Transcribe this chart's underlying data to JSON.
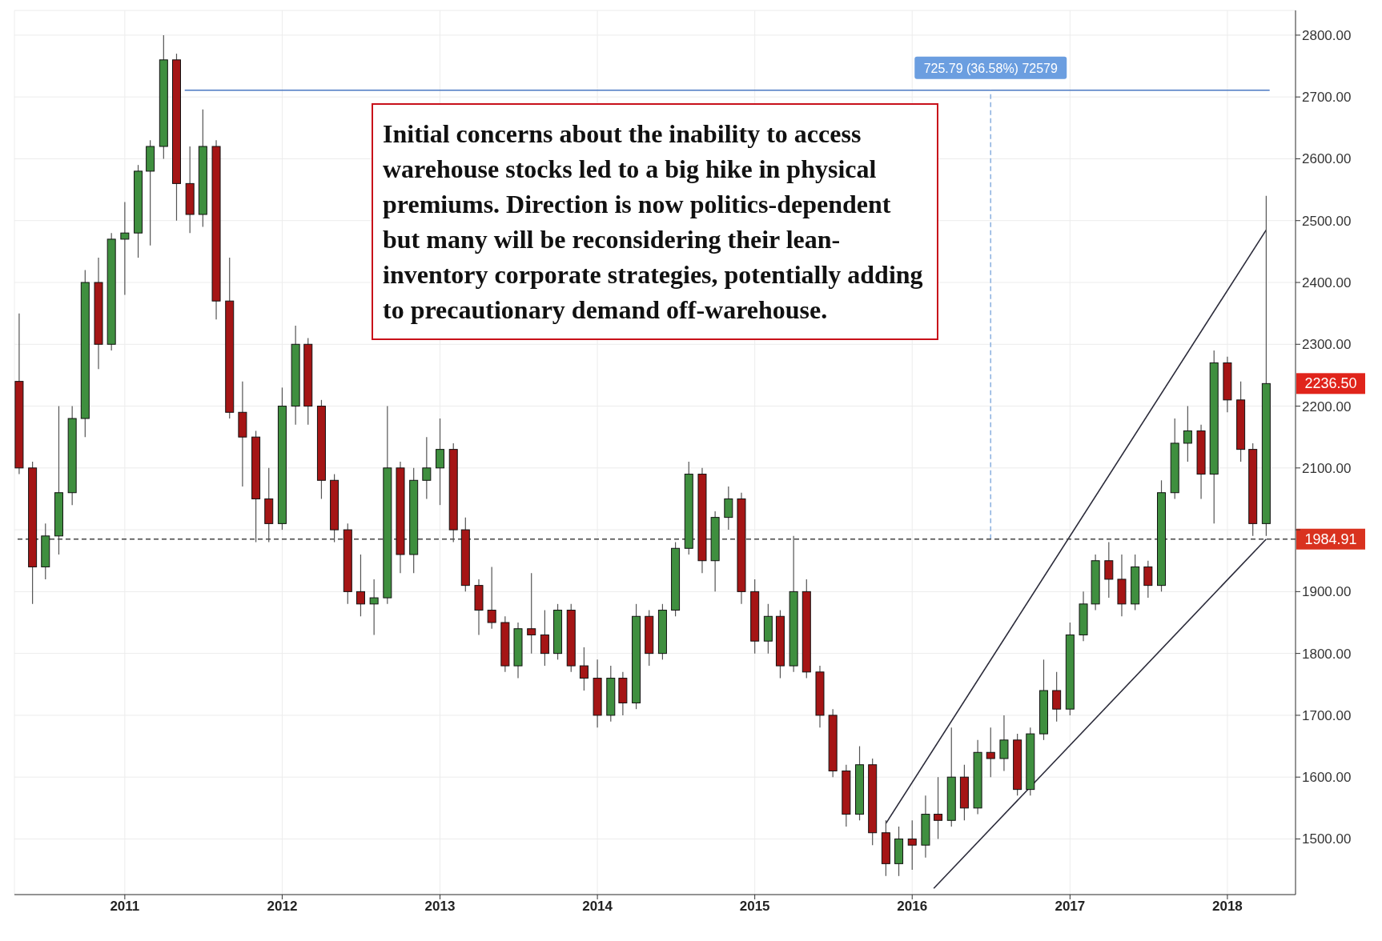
{
  "chart_data": {
    "type": "candlestick",
    "grid": true,
    "annotations": [
      "Initial concerns about the inability to access warehouse stocks led to a big hike in physical premiums. Direction is now politics-dependent but many will be reconsidering their lean-inventory corporate strategies, potentially adding to precautionary demand off-warehouse.",
      {
        "text": "725.79 (36.58%) 72579",
        "x": "2016-07-01",
        "y": 2711
      },
      {
        "text": "2236.50",
        "x": "2018-04-01",
        "y": 2236.5
      }
    ],
    "xlim": [
      "2010-04-20",
      "2018-06-08"
    ],
    "xticks": [
      "2011",
      "2012",
      "2013",
      "2014",
      "2015",
      "2016",
      "2017",
      "2018"
    ],
    "ylim": [
      1410,
      2840
    ],
    "yticks": [
      {
        "value": 1500,
        "label": "1500.00"
      },
      {
        "value": 1600,
        "label": "1600.00"
      },
      {
        "value": 1700,
        "label": "1700.00"
      },
      {
        "value": 1800,
        "label": "1800.00"
      },
      {
        "value": 1900,
        "label": "1900.00"
      },
      {
        "value": 2000,
        "label": null
      },
      {
        "value": 2100,
        "label": "2100.00"
      },
      {
        "value": 2200,
        "label": "2200.00"
      },
      {
        "value": 2300,
        "label": "2300.00"
      },
      {
        "value": 2400,
        "label": "2400.00"
      },
      {
        "value": 2500,
        "label": "2500.00"
      },
      {
        "value": 2600,
        "label": "2600.00"
      },
      {
        "value": 2700,
        "label": "2700.00"
      },
      {
        "value": 2800,
        "label": "2800.00"
      }
    ],
    "x": [
      "2010-05-01",
      "2010-06-01",
      "2010-07-01",
      "2010-08-01",
      "2010-09-01",
      "2010-10-01",
      "2010-11-01",
      "2010-12-01",
      "2011-01-01",
      "2011-02-01",
      "2011-03-01",
      "2011-04-01",
      "2011-05-01",
      "2011-06-01",
      "2011-07-01",
      "2011-08-01",
      "2011-09-01",
      "2011-10-01",
      "2011-11-01",
      "2011-12-01",
      "2012-01-01",
      "2012-02-01",
      "2012-03-01",
      "2012-04-01",
      "2012-05-01",
      "2012-06-01",
      "2012-07-01",
      "2012-08-01",
      "2012-09-01",
      "2012-10-01",
      "2012-11-01",
      "2012-12-01",
      "2013-01-01",
      "2013-02-01",
      "2013-03-01",
      "2013-04-01",
      "2013-05-01",
      "2013-06-01",
      "2013-07-01",
      "2013-08-01",
      "2013-09-01",
      "2013-10-01",
      "2013-11-01",
      "2013-12-01",
      "2014-01-01",
      "2014-02-01",
      "2014-03-01",
      "2014-04-01",
      "2014-05-01",
      "2014-06-01",
      "2014-07-01",
      "2014-08-01",
      "2014-09-01",
      "2014-10-01",
      "2014-11-01",
      "2014-12-01",
      "2015-01-01",
      "2015-02-01",
      "2015-03-01",
      "2015-04-01",
      "2015-05-01",
      "2015-06-01",
      "2015-07-01",
      "2015-08-01",
      "2015-09-01",
      "2015-10-01",
      "2015-11-01",
      "2015-12-01",
      "2016-01-01",
      "2016-02-01",
      "2016-03-01",
      "2016-04-01",
      "2016-05-01",
      "2016-06-01",
      "2016-07-01",
      "2016-08-01",
      "2016-09-01",
      "2016-10-01",
      "2016-11-01",
      "2016-12-01",
      "2017-01-01",
      "2017-02-01",
      "2017-03-01",
      "2017-04-01",
      "2017-05-01",
      "2017-06-01",
      "2017-07-01",
      "2017-08-01",
      "2017-09-01",
      "2017-10-01",
      "2017-11-01",
      "2017-12-01",
      "2018-01-01",
      "2018-02-01",
      "2018-03-01",
      "2018-04-01"
    ],
    "ohlc": [
      [
        2240,
        2350,
        2090,
        2100
      ],
      [
        2100,
        2110,
        1880,
        1940
      ],
      [
        1940,
        2010,
        1920,
        1990
      ],
      [
        1990,
        2200,
        1960,
        2060
      ],
      [
        2060,
        2200,
        2040,
        2180
      ],
      [
        2180,
        2420,
        2150,
        2400
      ],
      [
        2400,
        2440,
        2260,
        2300
      ],
      [
        2300,
        2480,
        2290,
        2470
      ],
      [
        2470,
        2530,
        2380,
        2480
      ],
      [
        2480,
        2590,
        2440,
        2580
      ],
      [
        2580,
        2630,
        2460,
        2620
      ],
      [
        2620,
        2800,
        2600,
        2760
      ],
      [
        2760,
        2770,
        2500,
        2560
      ],
      [
        2560,
        2620,
        2480,
        2510
      ],
      [
        2510,
        2680,
        2490,
        2620
      ],
      [
        2620,
        2630,
        2340,
        2370
      ],
      [
        2370,
        2440,
        2180,
        2190
      ],
      [
        2190,
        2240,
        2070,
        2150
      ],
      [
        2150,
        2160,
        1980,
        2050
      ],
      [
        2050,
        2100,
        1980,
        2010
      ],
      [
        2010,
        2230,
        2000,
        2200
      ],
      [
        2200,
        2330,
        2170,
        2300
      ],
      [
        2300,
        2310,
        2170,
        2200
      ],
      [
        2200,
        2210,
        2050,
        2080
      ],
      [
        2080,
        2090,
        1980,
        2000
      ],
      [
        2000,
        2010,
        1880,
        1900
      ],
      [
        1900,
        1960,
        1860,
        1880
      ],
      [
        1880,
        1920,
        1830,
        1890
      ],
      [
        1890,
        2200,
        1880,
        2100
      ],
      [
        2100,
        2110,
        1930,
        1960
      ],
      [
        1960,
        2100,
        1930,
        2080
      ],
      [
        2080,
        2150,
        2050,
        2100
      ],
      [
        2100,
        2180,
        2040,
        2130
      ],
      [
        2130,
        2140,
        1980,
        2000
      ],
      [
        2000,
        2020,
        1900,
        1910
      ],
      [
        1910,
        1920,
        1830,
        1870
      ],
      [
        1870,
        1940,
        1840,
        1850
      ],
      [
        1850,
        1860,
        1770,
        1780
      ],
      [
        1780,
        1850,
        1760,
        1840
      ],
      [
        1840,
        1930,
        1800,
        1830
      ],
      [
        1830,
        1870,
        1780,
        1800
      ],
      [
        1800,
        1880,
        1790,
        1870
      ],
      [
        1870,
        1880,
        1770,
        1780
      ],
      [
        1780,
        1810,
        1740,
        1760
      ],
      [
        1760,
        1790,
        1680,
        1700
      ],
      [
        1700,
        1780,
        1690,
        1760
      ],
      [
        1760,
        1770,
        1700,
        1720
      ],
      [
        1720,
        1880,
        1710,
        1860
      ],
      [
        1860,
        1870,
        1780,
        1800
      ],
      [
        1800,
        1880,
        1790,
        1870
      ],
      [
        1870,
        1980,
        1860,
        1970
      ],
      [
        1970,
        2110,
        1960,
        2090
      ],
      [
        2090,
        2100,
        1930,
        1950
      ],
      [
        1950,
        2030,
        1900,
        2020
      ],
      [
        2020,
        2070,
        2000,
        2050
      ],
      [
        2050,
        2060,
        1880,
        1900
      ],
      [
        1900,
        1920,
        1800,
        1820
      ],
      [
        1820,
        1880,
        1800,
        1860
      ],
      [
        1860,
        1870,
        1760,
        1780
      ],
      [
        1780,
        1990,
        1770,
        1900
      ],
      [
        1900,
        1920,
        1760,
        1770
      ],
      [
        1770,
        1780,
        1680,
        1700
      ],
      [
        1700,
        1710,
        1600,
        1610
      ],
      [
        1610,
        1620,
        1520,
        1540
      ],
      [
        1540,
        1650,
        1530,
        1620
      ],
      [
        1620,
        1630,
        1490,
        1510
      ],
      [
        1510,
        1530,
        1440,
        1460
      ],
      [
        1460,
        1520,
        1440,
        1500
      ],
      [
        1500,
        1530,
        1450,
        1490
      ],
      [
        1490,
        1570,
        1470,
        1540
      ],
      [
        1540,
        1600,
        1500,
        1530
      ],
      [
        1530,
        1680,
        1520,
        1600
      ],
      [
        1600,
        1620,
        1530,
        1550
      ],
      [
        1550,
        1660,
        1540,
        1640
      ],
      [
        1640,
        1680,
        1600,
        1630
      ],
      [
        1630,
        1700,
        1610,
        1660
      ],
      [
        1660,
        1670,
        1570,
        1580
      ],
      [
        1580,
        1680,
        1570,
        1670
      ],
      [
        1670,
        1790,
        1660,
        1740
      ],
      [
        1740,
        1770,
        1690,
        1710
      ],
      [
        1710,
        1850,
        1700,
        1830
      ],
      [
        1830,
        1900,
        1820,
        1880
      ],
      [
        1880,
        1960,
        1870,
        1950
      ],
      [
        1950,
        1980,
        1890,
        1920
      ],
      [
        1920,
        1960,
        1860,
        1880
      ],
      [
        1880,
        1960,
        1870,
        1940
      ],
      [
        1940,
        1950,
        1890,
        1910
      ],
      [
        1910,
        2080,
        1900,
        2060
      ],
      [
        2060,
        2180,
        2050,
        2140
      ],
      [
        2140,
        2200,
        2110,
        2160
      ],
      [
        2160,
        2170,
        2050,
        2090
      ],
      [
        2090,
        2290,
        2010,
        2270
      ],
      [
        2270,
        2280,
        2190,
        2210
      ],
      [
        2210,
        2240,
        2110,
        2130
      ],
      [
        2130,
        2140,
        1990,
        2010
      ],
      [
        2010,
        2540,
        1990,
        2236.5
      ]
    ],
    "series": [
      {
        "type": "line",
        "color": "#4a78c2",
        "x": [
          "2011-05-20",
          "2018-04-09"
        ],
        "values": [
          2711,
          2711
        ]
      },
      {
        "type": "line",
        "color": "#8fb3e0",
        "line_style": "dashed",
        "x": [
          "2016-07-01",
          "2016-07-01"
        ],
        "values": [
          1985,
          2711
        ]
      },
      {
        "type": "line",
        "color": "#2b2b3a",
        "x": [
          "2015-11-01",
          "2018-04-01"
        ],
        "values": [
          1525,
          2485
        ]
      },
      {
        "type": "line",
        "color": "#2b2b3a",
        "x": [
          "2016-02-20",
          "2018-04-01"
        ],
        "values": [
          1420,
          1985
        ]
      }
    ],
    "ref_lines": [
      {
        "axis": "y",
        "value": 1984.91,
        "label": "1984.91",
        "color": "#444444",
        "line_style": "dashed"
      }
    ]
  }
}
